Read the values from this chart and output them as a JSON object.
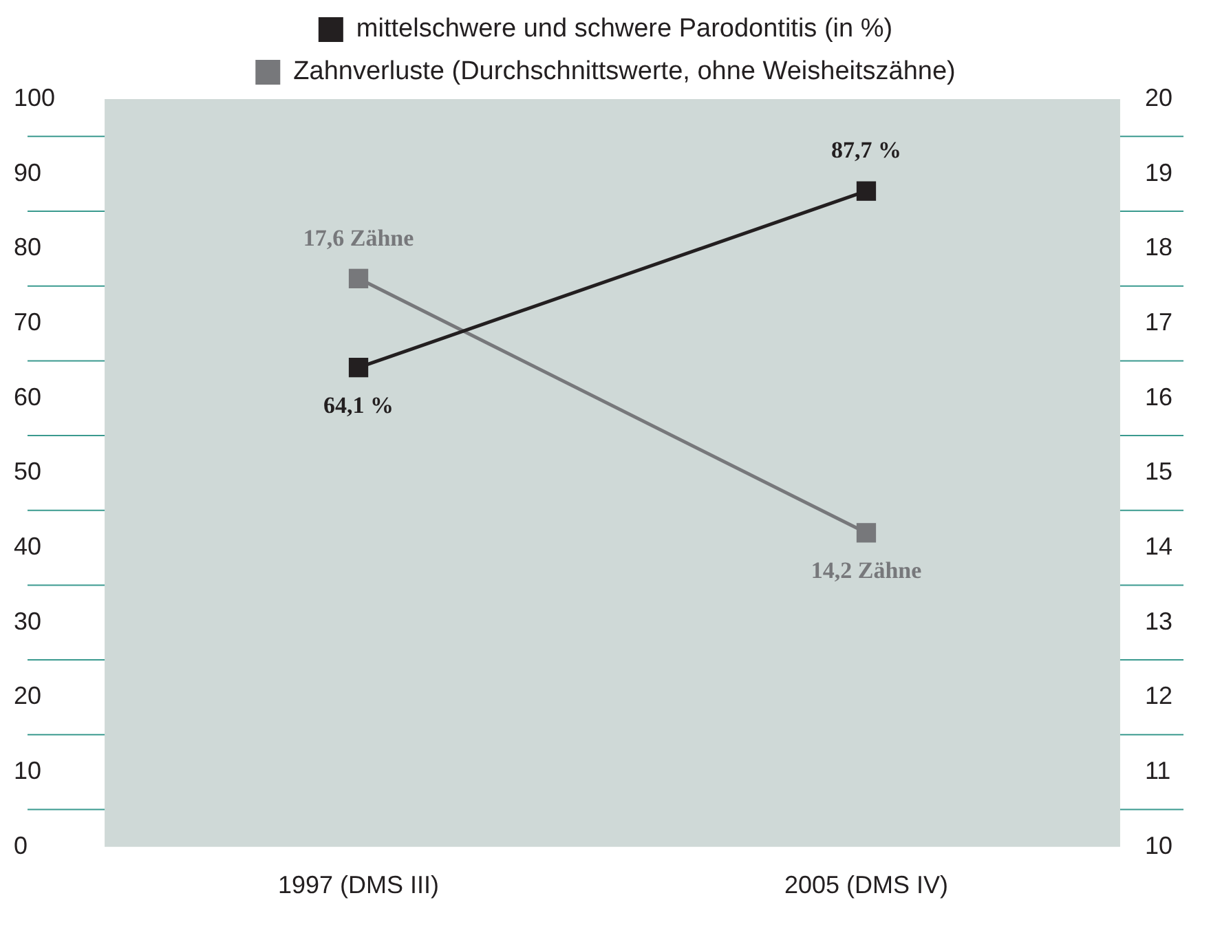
{
  "chart_data": {
    "type": "line",
    "categories": [
      "1997 (DMS III)",
      "2005 (DMS IV)"
    ],
    "series": [
      {
        "name": "mittelschwere und schwere Parodontitis (in %)",
        "color": "#231f20",
        "values": [
          64.1,
          87.7
        ],
        "value_labels": [
          "64,1 %",
          "87,7 %"
        ]
      },
      {
        "name": "Zahnverluste (Durchschnittswerte, ohne Weisheitszähne)",
        "color": "#77787b",
        "values": [
          17.6,
          14.2
        ],
        "value_labels": [
          "17,6 Zähne",
          "14,2 Zähne"
        ],
        "axis": "y2"
      }
    ],
    "ylim": [
      0,
      100
    ],
    "yticks": [
      0,
      10,
      20,
      30,
      40,
      50,
      60,
      70,
      80,
      90,
      100
    ],
    "y2lim": [
      10,
      20
    ],
    "y2ticks": [
      10,
      11,
      12,
      13,
      14,
      15,
      16,
      17,
      18,
      19,
      20
    ],
    "grid": false,
    "legend": "top",
    "marker": "square",
    "line_style": "solid"
  }
}
